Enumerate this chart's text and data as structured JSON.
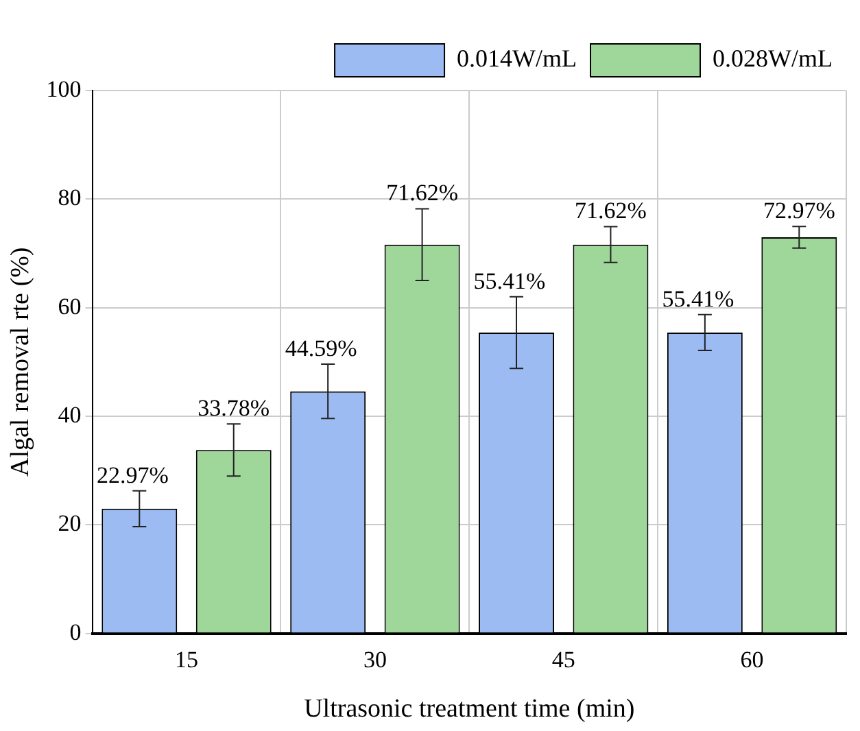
{
  "chart_data": {
    "type": "bar",
    "xlabel": "Ultrasonic treatment time (min)",
    "ylabel": "Algal removal rte (%)",
    "categories": [
      "15",
      "30",
      "45",
      "60"
    ],
    "series": [
      {
        "name": "0.014W/mL",
        "color": "#9bbbf2",
        "values": [
          22.97,
          44.59,
          55.41,
          55.41
        ],
        "errors": [
          3.3,
          5,
          6.6,
          3.3
        ],
        "value_labels": [
          "22.97%",
          "44.59%",
          "55.41%",
          "55.41%"
        ]
      },
      {
        "name": "0.028W/mL",
        "color": "#9fd79b",
        "values": [
          33.78,
          71.62,
          71.62,
          72.97
        ],
        "errors": [
          4.8,
          6.6,
          3.3,
          2
        ],
        "value_labels": [
          "33.78%",
          "71.62%",
          "71.62%",
          "72.97%"
        ]
      }
    ],
    "ylim": [
      0,
      100
    ],
    "yticks": [
      0,
      20,
      40,
      60,
      80,
      100
    ],
    "grid": true,
    "legend": "top right"
  }
}
